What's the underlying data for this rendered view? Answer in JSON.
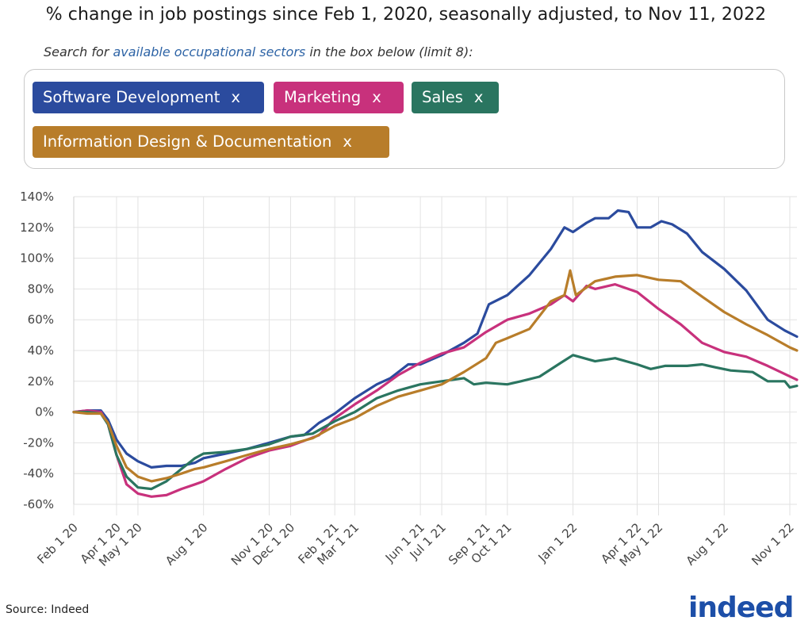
{
  "title": "% change in job postings since Feb 1, 2020, seasonally adjusted, to Nov 11, 2022",
  "search": {
    "prefix": "Search for ",
    "link": "available occupational sectors",
    "suffix": " in the box below (limit 8):"
  },
  "chips": [
    {
      "label": "Software Development",
      "remove": "x",
      "color": "#2b4b9e"
    },
    {
      "label": "Marketing",
      "remove": "x",
      "color": "#c8317c"
    },
    {
      "label": "Sales",
      "remove": "x",
      "color": "#2a7560"
    },
    {
      "label": "Information Design & Documentation",
      "remove": "x",
      "color": "#b87d2a"
    }
  ],
  "source": "Source: Indeed",
  "logo": {
    "text": "indeed",
    "color": "#1d4fa8"
  },
  "chart_data": {
    "type": "line",
    "title": "% change in job postings since Feb 1, 2020, seasonally adjusted, to Nov 11, 2022",
    "xlabel": "",
    "ylabel": "",
    "ylim": [
      -60,
      140
    ],
    "yticks": [
      140,
      120,
      100,
      80,
      60,
      40,
      20,
      0,
      -20,
      -40,
      -60
    ],
    "ytick_labels": [
      "140%",
      "120%",
      "100%",
      "80%",
      "60%",
      "40%",
      "20%",
      "0%",
      "-20%",
      "-40%",
      "-60%"
    ],
    "xlim": [
      "2020-02-01",
      "2022-11-11"
    ],
    "xticks": [
      {
        "label": "Feb 1 20",
        "date": "2020-02-01"
      },
      {
        "label": "Apr 1 20",
        "date": "2020-04-01"
      },
      {
        "label": "May 1 20",
        "date": "2020-05-01"
      },
      {
        "label": "Aug 1 20",
        "date": "2020-08-01"
      },
      {
        "label": "Nov 1 20",
        "date": "2020-11-01"
      },
      {
        "label": "Dec 1 20",
        "date": "2020-12-01"
      },
      {
        "label": "Feb 1 21",
        "date": "2021-02-01"
      },
      {
        "label": "Mar 1 21",
        "date": "2021-03-01"
      },
      {
        "label": "Jun 1 21",
        "date": "2021-06-01"
      },
      {
        "label": "Jul 1 21",
        "date": "2021-07-01"
      },
      {
        "label": "Sep 1 21",
        "date": "2021-09-01"
      },
      {
        "label": "Oct 1 21",
        "date": "2021-10-01"
      },
      {
        "label": "Jan 1 22",
        "date": "2022-01-01"
      },
      {
        "label": "Apr 1 22",
        "date": "2022-04-01"
      },
      {
        "label": "May 1 22",
        "date": "2022-05-01"
      },
      {
        "label": "Aug 1 22",
        "date": "2022-08-01"
      },
      {
        "label": "Nov 1 22",
        "date": "2022-11-01"
      }
    ],
    "grid": true,
    "series": [
      {
        "name": "Software Development",
        "color": "#2b4b9e",
        "points": [
          [
            "2020-02-01",
            0
          ],
          [
            "2020-02-20",
            1
          ],
          [
            "2020-03-10",
            1
          ],
          [
            "2020-03-20",
            -5
          ],
          [
            "2020-04-01",
            -18
          ],
          [
            "2020-04-15",
            -27
          ],
          [
            "2020-05-01",
            -32
          ],
          [
            "2020-05-20",
            -36
          ],
          [
            "2020-06-10",
            -35
          ],
          [
            "2020-07-01",
            -35
          ],
          [
            "2020-07-20",
            -33
          ],
          [
            "2020-08-01",
            -30
          ],
          [
            "2020-09-01",
            -27
          ],
          [
            "2020-10-01",
            -24
          ],
          [
            "2020-11-01",
            -20
          ],
          [
            "2020-12-01",
            -16
          ],
          [
            "2020-12-20",
            -15
          ],
          [
            "2021-01-10",
            -7
          ],
          [
            "2021-02-01",
            -1
          ],
          [
            "2021-03-01",
            9
          ],
          [
            "2021-04-01",
            18
          ],
          [
            "2021-04-20",
            22
          ],
          [
            "2021-05-15",
            31
          ],
          [
            "2021-06-01",
            31
          ],
          [
            "2021-07-01",
            37
          ],
          [
            "2021-08-01",
            45
          ],
          [
            "2021-08-20",
            51
          ],
          [
            "2021-09-05",
            70
          ],
          [
            "2021-10-01",
            76
          ],
          [
            "2021-11-01",
            89
          ],
          [
            "2021-12-01",
            106
          ],
          [
            "2021-12-20",
            120
          ],
          [
            "2022-01-01",
            117
          ],
          [
            "2022-01-20",
            123
          ],
          [
            "2022-02-01",
            126
          ],
          [
            "2022-02-20",
            126
          ],
          [
            "2022-03-05",
            131
          ],
          [
            "2022-03-20",
            130
          ],
          [
            "2022-04-01",
            120
          ],
          [
            "2022-04-20",
            120
          ],
          [
            "2022-05-05",
            124
          ],
          [
            "2022-05-20",
            122
          ],
          [
            "2022-06-10",
            116
          ],
          [
            "2022-07-01",
            104
          ],
          [
            "2022-08-01",
            93
          ],
          [
            "2022-09-01",
            79
          ],
          [
            "2022-10-01",
            60
          ],
          [
            "2022-10-25",
            53
          ],
          [
            "2022-11-11",
            49
          ]
        ]
      },
      {
        "name": "Marketing",
        "color": "#c8317c",
        "points": [
          [
            "2020-02-01",
            0
          ],
          [
            "2020-02-20",
            1
          ],
          [
            "2020-03-10",
            0
          ],
          [
            "2020-03-20",
            -8
          ],
          [
            "2020-04-01",
            -28
          ],
          [
            "2020-04-15",
            -47
          ],
          [
            "2020-05-01",
            -53
          ],
          [
            "2020-05-20",
            -55
          ],
          [
            "2020-06-10",
            -54
          ],
          [
            "2020-07-01",
            -50
          ],
          [
            "2020-07-20",
            -47
          ],
          [
            "2020-08-01",
            -45
          ],
          [
            "2020-09-01",
            -37
          ],
          [
            "2020-10-01",
            -30
          ],
          [
            "2020-11-01",
            -25
          ],
          [
            "2020-12-01",
            -22
          ],
          [
            "2021-01-10",
            -15
          ],
          [
            "2021-02-01",
            -4
          ],
          [
            "2021-03-01",
            5
          ],
          [
            "2021-04-01",
            14
          ],
          [
            "2021-05-01",
            24
          ],
          [
            "2021-06-01",
            32
          ],
          [
            "2021-07-01",
            38
          ],
          [
            "2021-08-01",
            42
          ],
          [
            "2021-09-01",
            52
          ],
          [
            "2021-10-01",
            60
          ],
          [
            "2021-11-01",
            64
          ],
          [
            "2021-12-01",
            70
          ],
          [
            "2021-12-20",
            76
          ],
          [
            "2022-01-01",
            72
          ],
          [
            "2022-01-20",
            82
          ],
          [
            "2022-02-01",
            80
          ],
          [
            "2022-03-01",
            83
          ],
          [
            "2022-04-01",
            78
          ],
          [
            "2022-05-01",
            67
          ],
          [
            "2022-06-01",
            57
          ],
          [
            "2022-07-01",
            45
          ],
          [
            "2022-08-01",
            39
          ],
          [
            "2022-09-01",
            36
          ],
          [
            "2022-10-01",
            30
          ],
          [
            "2022-11-11",
            21
          ]
        ]
      },
      {
        "name": "Sales",
        "color": "#2a7560",
        "points": [
          [
            "2020-02-01",
            0
          ],
          [
            "2020-02-20",
            0
          ],
          [
            "2020-03-10",
            -1
          ],
          [
            "2020-03-20",
            -8
          ],
          [
            "2020-04-01",
            -28
          ],
          [
            "2020-04-15",
            -42
          ],
          [
            "2020-05-01",
            -49
          ],
          [
            "2020-05-20",
            -50
          ],
          [
            "2020-06-10",
            -45
          ],
          [
            "2020-07-01",
            -37
          ],
          [
            "2020-07-20",
            -30
          ],
          [
            "2020-08-01",
            -27
          ],
          [
            "2020-09-01",
            -26
          ],
          [
            "2020-10-01",
            -24
          ],
          [
            "2020-11-01",
            -21
          ],
          [
            "2020-12-01",
            -16
          ],
          [
            "2021-01-01",
            -14
          ],
          [
            "2021-02-01",
            -6
          ],
          [
            "2021-03-01",
            0
          ],
          [
            "2021-04-01",
            9
          ],
          [
            "2021-05-01",
            14
          ],
          [
            "2021-06-01",
            18
          ],
          [
            "2021-07-01",
            20
          ],
          [
            "2021-08-01",
            22
          ],
          [
            "2021-08-15",
            18
          ],
          [
            "2021-09-01",
            19
          ],
          [
            "2021-10-01",
            18
          ],
          [
            "2021-10-20",
            20
          ],
          [
            "2021-11-15",
            23
          ],
          [
            "2021-12-15",
            32
          ],
          [
            "2022-01-01",
            37
          ],
          [
            "2022-02-01",
            33
          ],
          [
            "2022-03-01",
            35
          ],
          [
            "2022-04-01",
            31
          ],
          [
            "2022-04-20",
            28
          ],
          [
            "2022-05-10",
            30
          ],
          [
            "2022-06-10",
            30
          ],
          [
            "2022-07-01",
            31
          ],
          [
            "2022-07-20",
            29
          ],
          [
            "2022-08-10",
            27
          ],
          [
            "2022-09-10",
            26
          ],
          [
            "2022-10-01",
            20
          ],
          [
            "2022-10-25",
            20
          ],
          [
            "2022-11-01",
            16
          ],
          [
            "2022-11-11",
            17
          ]
        ]
      },
      {
        "name": "Information Design & Documentation",
        "color": "#b87d2a",
        "points": [
          [
            "2020-02-01",
            0
          ],
          [
            "2020-02-20",
            -1
          ],
          [
            "2020-03-10",
            -1
          ],
          [
            "2020-03-20",
            -7
          ],
          [
            "2020-04-01",
            -22
          ],
          [
            "2020-04-15",
            -36
          ],
          [
            "2020-05-01",
            -42
          ],
          [
            "2020-05-20",
            -45
          ],
          [
            "2020-06-10",
            -43
          ],
          [
            "2020-07-01",
            -40
          ],
          [
            "2020-07-20",
            -37
          ],
          [
            "2020-08-01",
            -36
          ],
          [
            "2020-09-01",
            -32
          ],
          [
            "2020-10-01",
            -28
          ],
          [
            "2020-11-01",
            -24
          ],
          [
            "2020-12-01",
            -21
          ],
          [
            "2021-01-01",
            -17
          ],
          [
            "2021-02-01",
            -9
          ],
          [
            "2021-03-01",
            -4
          ],
          [
            "2021-04-01",
            4
          ],
          [
            "2021-05-01",
            10
          ],
          [
            "2021-06-01",
            14
          ],
          [
            "2021-07-01",
            18
          ],
          [
            "2021-08-01",
            26
          ],
          [
            "2021-09-01",
            35
          ],
          [
            "2021-09-15",
            45
          ],
          [
            "2021-10-01",
            48
          ],
          [
            "2021-11-01",
            54
          ],
          [
            "2021-12-01",
            72
          ],
          [
            "2021-12-20",
            76
          ],
          [
            "2021-12-28",
            92
          ],
          [
            "2022-01-05",
            76
          ],
          [
            "2022-02-01",
            85
          ],
          [
            "2022-03-01",
            88
          ],
          [
            "2022-04-01",
            89
          ],
          [
            "2022-05-01",
            86
          ],
          [
            "2022-06-01",
            85
          ],
          [
            "2022-07-01",
            75
          ],
          [
            "2022-08-01",
            65
          ],
          [
            "2022-09-01",
            57
          ],
          [
            "2022-10-01",
            50
          ],
          [
            "2022-11-01",
            42
          ],
          [
            "2022-11-11",
            40
          ]
        ]
      }
    ]
  }
}
